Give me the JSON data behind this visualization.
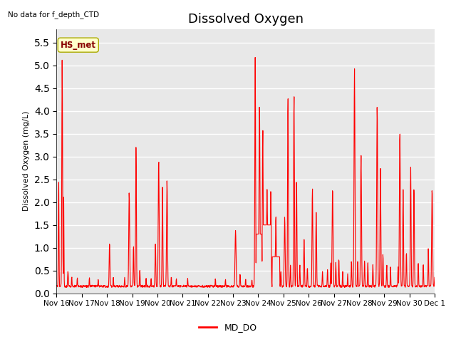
{
  "title": "Dissolved Oxygen",
  "top_left_text": "No data for f_depth_CTD",
  "ylabel": "Dissolved Oxygen (mg/L)",
  "ylim": [
    0.0,
    5.8
  ],
  "yticks": [
    0.0,
    0.5,
    1.0,
    1.5,
    2.0,
    2.5,
    3.0,
    3.5,
    4.0,
    4.5,
    5.0,
    5.5
  ],
  "line_color": "red",
  "line_width": 0.8,
  "legend_label": "MD_DO",
  "legend_line_color": "red",
  "box_label": "HS_met",
  "box_facecolor": "#ffffcc",
  "box_edgecolor": "#aaaa00",
  "box_text_color": "#880000",
  "plot_bg_color": "#e8e8e8",
  "tick_labels": [
    "Nov 16",
    "Nov 17",
    "Nov 18",
    "Nov 19",
    "Nov 20",
    "Nov 21",
    "Nov 22",
    "Nov 23",
    "Nov 24",
    "Nov 25",
    "Nov 26",
    "Nov 27",
    "Nov 28",
    "Nov 29",
    "Nov 30",
    "Dec 1"
  ],
  "title_fontsize": 13,
  "label_fontsize": 8,
  "tick_fontsize": 7.5
}
